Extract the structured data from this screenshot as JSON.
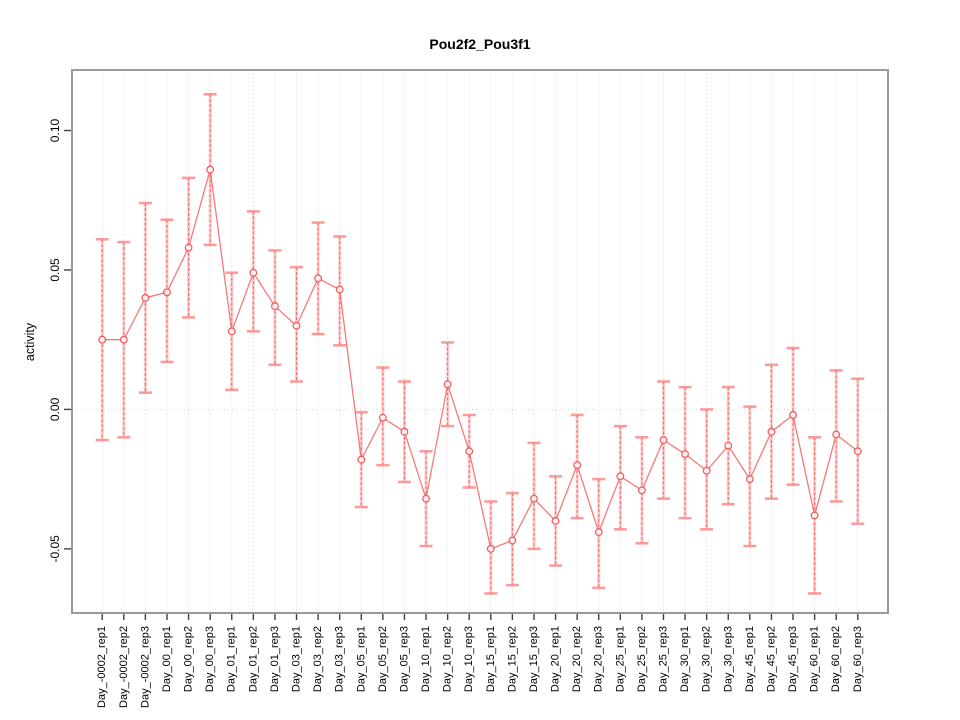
{
  "chart_data": {
    "type": "line",
    "title": "Pou2f2_Pou3f1",
    "ylabel": "activity",
    "xlabel": "",
    "legend": "none",
    "grid": "vertical dotted gridline at every category; horizontal dotted line at y=0",
    "categories": [
      "Day_-0002_rep1",
      "Day_-0002_rep2",
      "Day_-0002_rep3",
      "Day_00_rep1",
      "Day_00_rep2",
      "Day_00_rep3",
      "Day_01_rep1",
      "Day_01_rep2",
      "Day_01_rep3",
      "Day_03_rep1",
      "Day_03_rep2",
      "Day_03_rep3",
      "Day_05_rep1",
      "Day_05_rep2",
      "Day_05_rep3",
      "Day_10_rep1",
      "Day_10_rep2",
      "Day_10_rep3",
      "Day_15_rep1",
      "Day_15_rep2",
      "Day_15_rep3",
      "Day_20_rep1",
      "Day_20_rep2",
      "Day_20_rep3",
      "Day_25_rep1",
      "Day_25_rep2",
      "Day_25_rep3",
      "Day_30_rep1",
      "Day_30_rep2",
      "Day_30_rep3",
      "Day_45_rep1",
      "Day_45_rep2",
      "Day_45_rep3",
      "Day_60_rep1",
      "Day_60_rep2",
      "Day_60_rep3"
    ],
    "series": [
      {
        "name": "activity",
        "values": [
          0.025,
          0.025,
          0.04,
          0.042,
          0.058,
          0.086,
          0.028,
          0.049,
          0.037,
          0.03,
          0.047,
          0.043,
          -0.018,
          -0.003,
          -0.008,
          -0.032,
          0.009,
          -0.015,
          -0.05,
          -0.047,
          -0.032,
          -0.04,
          -0.02,
          -0.044,
          -0.024,
          -0.029,
          -0.011,
          -0.016,
          -0.022,
          -0.013,
          -0.025,
          -0.008,
          -0.002,
          -0.038,
          -0.009,
          -0.015
        ],
        "error_high": [
          0.061,
          0.06,
          0.074,
          0.068,
          0.083,
          0.113,
          0.049,
          0.071,
          0.057,
          0.051,
          0.067,
          0.062,
          -0.001,
          0.015,
          0.01,
          -0.015,
          0.024,
          -0.002,
          -0.033,
          -0.03,
          -0.012,
          -0.024,
          -0.002,
          -0.025,
          -0.006,
          -0.01,
          0.01,
          0.008,
          0.0,
          0.008,
          0.001,
          0.016,
          0.022,
          -0.01,
          0.014,
          0.011
        ],
        "error_low": [
          -0.011,
          -0.01,
          0.006,
          0.017,
          0.033,
          0.059,
          0.007,
          0.028,
          0.016,
          0.01,
          0.027,
          0.023,
          -0.035,
          -0.02,
          -0.026,
          -0.049,
          -0.006,
          -0.028,
          -0.066,
          -0.063,
          -0.05,
          -0.056,
          -0.039,
          -0.064,
          -0.043,
          -0.048,
          -0.032,
          -0.039,
          -0.043,
          -0.034,
          -0.049,
          -0.032,
          -0.027,
          -0.066,
          -0.033,
          -0.041
        ]
      }
    ],
    "yticks": [
      0.1,
      0.05,
      0.0,
      -0.05
    ],
    "ytick_labels": [
      "0.10",
      "0.05",
      "0.00",
      "-0.05"
    ],
    "ylim": [
      -0.073,
      0.1217
    ],
    "colors": {
      "series_line": "#f46a6a",
      "point_stroke": "#f25555",
      "error_bar_core": "#f25555",
      "error_bar_pale": "#ffb3b3",
      "error_cap": "#fb8a8a",
      "gridline": "#d2d2d2",
      "box_border": "#999999",
      "tick": "#404040",
      "text": "#000000"
    }
  }
}
